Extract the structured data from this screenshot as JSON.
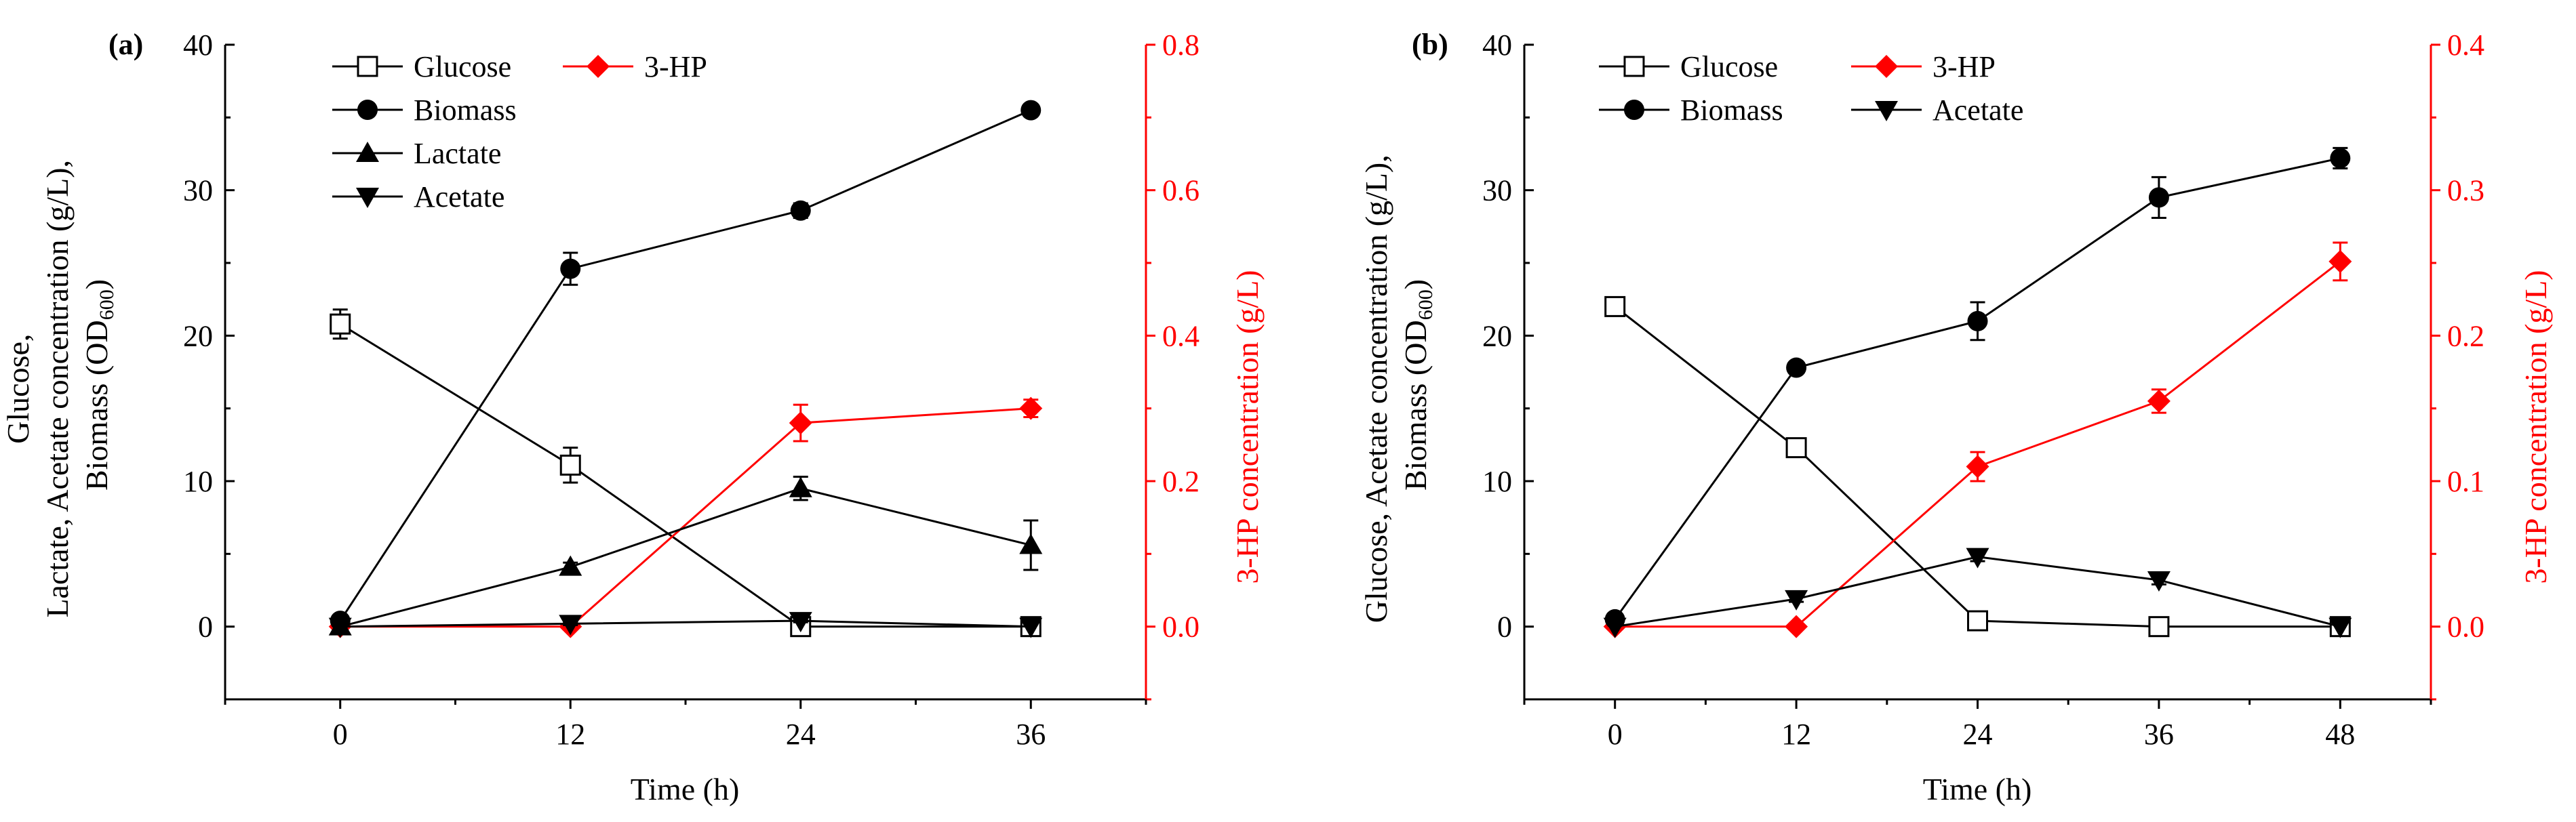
{
  "chart_data": [
    {
      "type": "line",
      "panel_label": "(a)",
      "xlabel": "Time (h)",
      "ylabel_lines": [
        "Glucose,",
        "Lactate, Acetate concentration (g/L),",
        "Biomass (OD",
        "600",
        ")"
      ],
      "y2label": "3-HP concentration (g/L)",
      "x_ticks": [
        0,
        12,
        24,
        36
      ],
      "xlim": [
        -6,
        42
      ],
      "ylim": [
        -5,
        40
      ],
      "y_ticks": [
        0,
        10,
        20,
        30,
        40
      ],
      "y2lim": [
        -0.1,
        0.8
      ],
      "y2_ticks": [
        "0.0",
        "0.2",
        "0.4",
        "0.6",
        "0.8"
      ],
      "series": [
        {
          "name": "Glucose",
          "marker": "square-open",
          "color": "#000000",
          "axis": "left",
          "x": [
            0,
            12,
            24,
            36
          ],
          "values": [
            20.8,
            11.1,
            0.0,
            0.0
          ],
          "errors": [
            1.0,
            1.2,
            0.3,
            0.2
          ]
        },
        {
          "name": "3-HP",
          "marker": "diamond",
          "color": "#ff0000",
          "axis": "right",
          "x": [
            0,
            12,
            24,
            36
          ],
          "values": [
            0.0,
            0.0,
            0.28,
            0.3
          ],
          "errors": [
            0.0,
            0.0,
            0.025,
            0.012
          ]
        },
        {
          "name": "Biomass",
          "marker": "circle",
          "color": "#000000",
          "axis": "left",
          "x": [
            0,
            12,
            24,
            36
          ],
          "values": [
            0.4,
            24.6,
            28.6,
            35.5
          ],
          "errors": [
            0.2,
            1.1,
            0.5,
            0.3
          ]
        },
        {
          "name": "Lactate",
          "marker": "triangle-up",
          "color": "#000000",
          "axis": "left",
          "x": [
            0,
            12,
            24,
            36
          ],
          "values": [
            0.0,
            4.1,
            9.5,
            5.6
          ],
          "errors": [
            0.0,
            0.3,
            0.8,
            1.7
          ]
        },
        {
          "name": "Acetate",
          "marker": "triangle-down",
          "color": "#000000",
          "axis": "left",
          "x": [
            0,
            12,
            24,
            36
          ],
          "values": [
            0.0,
            0.2,
            0.4,
            0.0
          ],
          "errors": [
            0.0,
            0.1,
            0.1,
            0.0
          ]
        }
      ]
    },
    {
      "type": "line",
      "panel_label": "(b)",
      "xlabel": "Time (h)",
      "ylabel_lines": [
        "Glucose, Acetate concentration (g/L),",
        "Biomass (OD",
        "600",
        ")"
      ],
      "y2label": "3-HP concentration (g/L)",
      "x_ticks": [
        0,
        12,
        24,
        36,
        48
      ],
      "xlim": [
        -6,
        54
      ],
      "ylim": [
        -5,
        40
      ],
      "y_ticks": [
        0,
        10,
        20,
        30,
        40
      ],
      "y2lim": [
        -0.05,
        0.4
      ],
      "y2_ticks": [
        "0.0",
        "0.1",
        "0.2",
        "0.3",
        "0.4"
      ],
      "series": [
        {
          "name": "Glucose",
          "marker": "square-open",
          "color": "#000000",
          "axis": "left",
          "x": [
            0,
            12,
            24,
            36,
            48
          ],
          "values": [
            22.0,
            12.3,
            0.4,
            0.0,
            0.0
          ],
          "errors": [
            0.3,
            0.4,
            0.3,
            0.2,
            0.2
          ]
        },
        {
          "name": "3-HP",
          "marker": "diamond",
          "color": "#ff0000",
          "axis": "right",
          "x": [
            0,
            12,
            24,
            36,
            48
          ],
          "values": [
            0.0,
            0.0,
            0.11,
            0.155,
            0.251
          ],
          "errors": [
            0.0,
            0.0,
            0.01,
            0.008,
            0.013
          ]
        },
        {
          "name": "Biomass",
          "marker": "circle",
          "color": "#000000",
          "axis": "left",
          "x": [
            0,
            12,
            24,
            36,
            48
          ],
          "values": [
            0.5,
            17.8,
            21.0,
            29.5,
            32.2
          ],
          "errors": [
            0.2,
            0.3,
            1.3,
            1.4,
            0.7
          ]
        },
        {
          "name": "Acetate",
          "marker": "triangle-down",
          "color": "#000000",
          "axis": "left",
          "x": [
            0,
            12,
            24,
            36,
            48
          ],
          "values": [
            0.0,
            1.9,
            4.8,
            3.2,
            0.0
          ],
          "errors": [
            0.0,
            0.2,
            0.3,
            0.3,
            0.0
          ]
        }
      ]
    }
  ]
}
